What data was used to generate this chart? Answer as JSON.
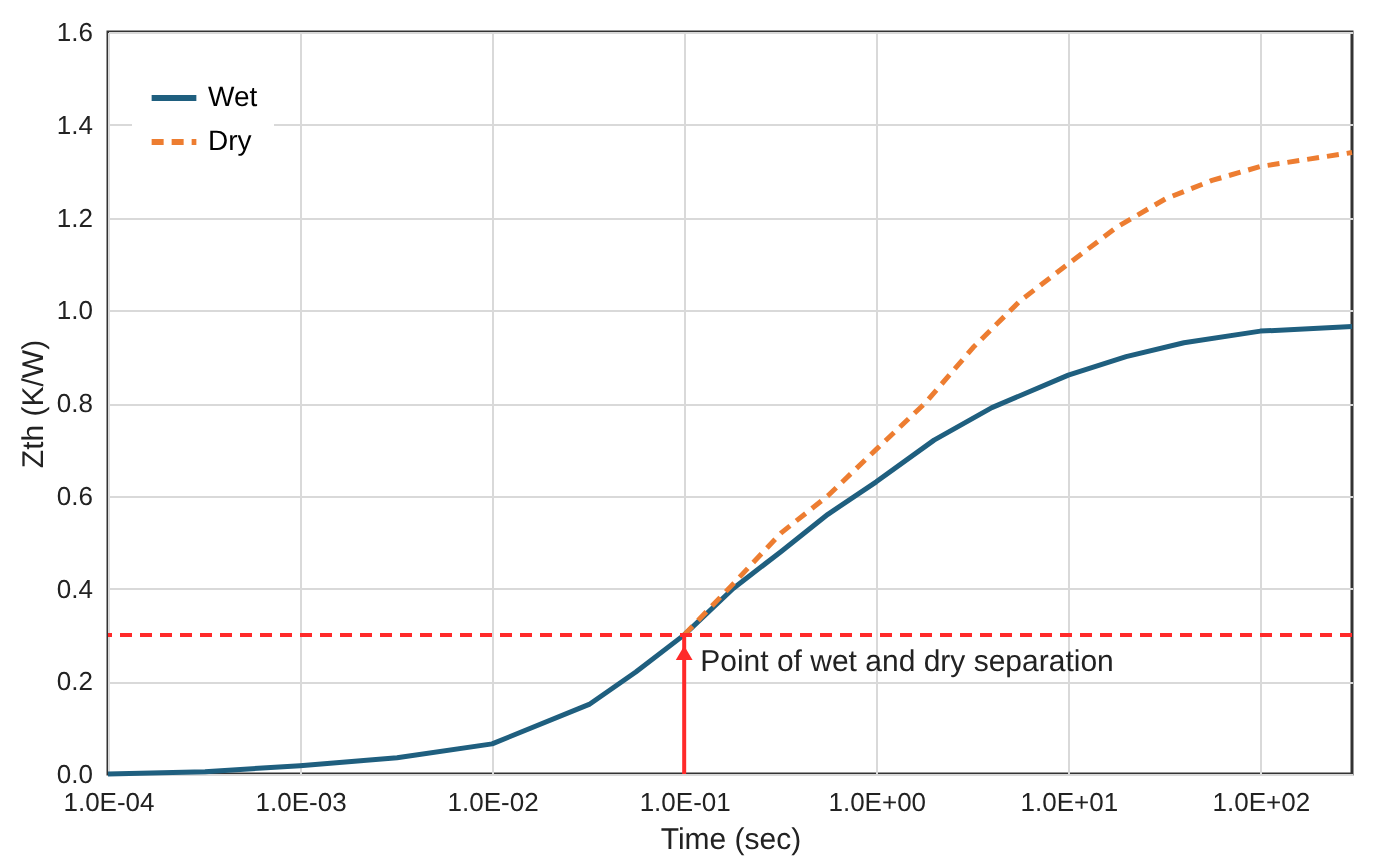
{
  "chart_data": {
    "type": "line",
    "xlabel": "Time (sec)",
    "ylabel": "Zth (K/W)",
    "log": "x",
    "xlim": [
      0.0001,
      300
    ],
    "ylim": [
      0,
      1.6
    ],
    "xticks": [
      {
        "value": 0.0001,
        "label": "1.0E-04"
      },
      {
        "value": 0.001,
        "label": "1.0E-03"
      },
      {
        "value": 0.01,
        "label": "1.0E-02"
      },
      {
        "value": 0.1,
        "label": "1.0E-01"
      },
      {
        "value": 1,
        "label": "1.0E+00"
      },
      {
        "value": 10,
        "label": "1.0E+01"
      },
      {
        "value": 100,
        "label": "1.0E+02"
      }
    ],
    "yticks": [
      {
        "value": 0,
        "label": "0.0"
      },
      {
        "value": 0.2,
        "label": "0.2"
      },
      {
        "value": 0.4,
        "label": "0.4"
      },
      {
        "value": 0.6,
        "label": "0.6"
      },
      {
        "value": 0.8,
        "label": "0.8"
      },
      {
        "value": 1,
        "label": "1.0"
      },
      {
        "value": 1.2,
        "label": "1.2"
      },
      {
        "value": 1.4,
        "label": "1.4"
      },
      {
        "value": 1.6,
        "label": "1.6"
      }
    ],
    "grid": true,
    "legend": "top left",
    "marker": "none",
    "series": [
      {
        "name": "Wet",
        "color": "#1f5f7f",
        "line_style": "solid",
        "x": [
          0.0001,
          0.00032,
          0.001,
          0.0032,
          0.01,
          0.032,
          0.056,
          0.1,
          0.18,
          0.32,
          0.56,
          1,
          2,
          4,
          10,
          20,
          40,
          100,
          300
        ],
        "values": [
          0.0,
          0.005,
          0.018,
          0.035,
          0.065,
          0.15,
          0.22,
          0.3,
          0.4,
          0.48,
          0.56,
          0.63,
          0.72,
          0.79,
          0.86,
          0.9,
          0.93,
          0.955,
          0.965
        ]
      },
      {
        "name": "Dry",
        "color": "#ed7d31",
        "line_style": "dashed",
        "x": [
          0.1,
          0.18,
          0.32,
          0.56,
          1,
          1.8,
          3.2,
          5.6,
          10,
          18,
          32,
          56,
          100,
          300
        ],
        "values": [
          0.3,
          0.41,
          0.52,
          0.6,
          0.7,
          0.8,
          0.92,
          1.02,
          1.1,
          1.18,
          1.24,
          1.28,
          1.31,
          1.34
        ]
      }
    ],
    "ref_lines": [
      {
        "axis": "y",
        "value": 0.3,
        "color": "#ff2a2a",
        "line_style": "dashed"
      }
    ],
    "annotations": [
      {
        "text": "Point of wet and dry separation",
        "x": 0.1,
        "y": 0.3
      }
    ]
  }
}
